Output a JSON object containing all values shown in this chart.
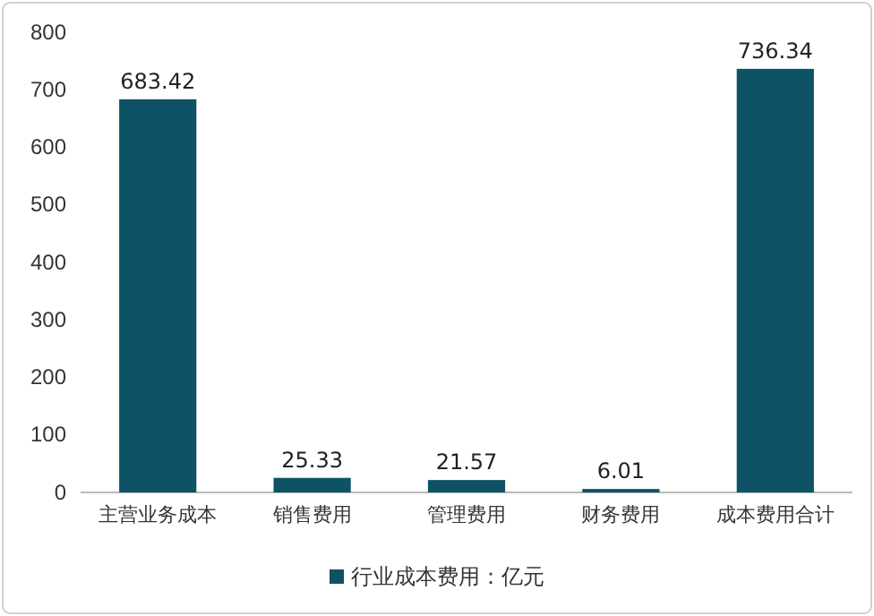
{
  "chart_data": {
    "type": "bar",
    "categories": [
      "主营业务成本",
      "销售费用",
      "管理费用",
      "财务费用",
      "成本费用合计"
    ],
    "series": [
      {
        "name": "行业成本费用：亿元",
        "color": "#0e5266",
        "values": [
          683.42,
          25.33,
          21.57,
          6.01,
          736.34
        ]
      }
    ],
    "ylim": [
      0,
      800
    ],
    "yticks": [
      0,
      100,
      200,
      300,
      400,
      500,
      600,
      700,
      800
    ],
    "data_labels": true,
    "legend": "bottom"
  }
}
